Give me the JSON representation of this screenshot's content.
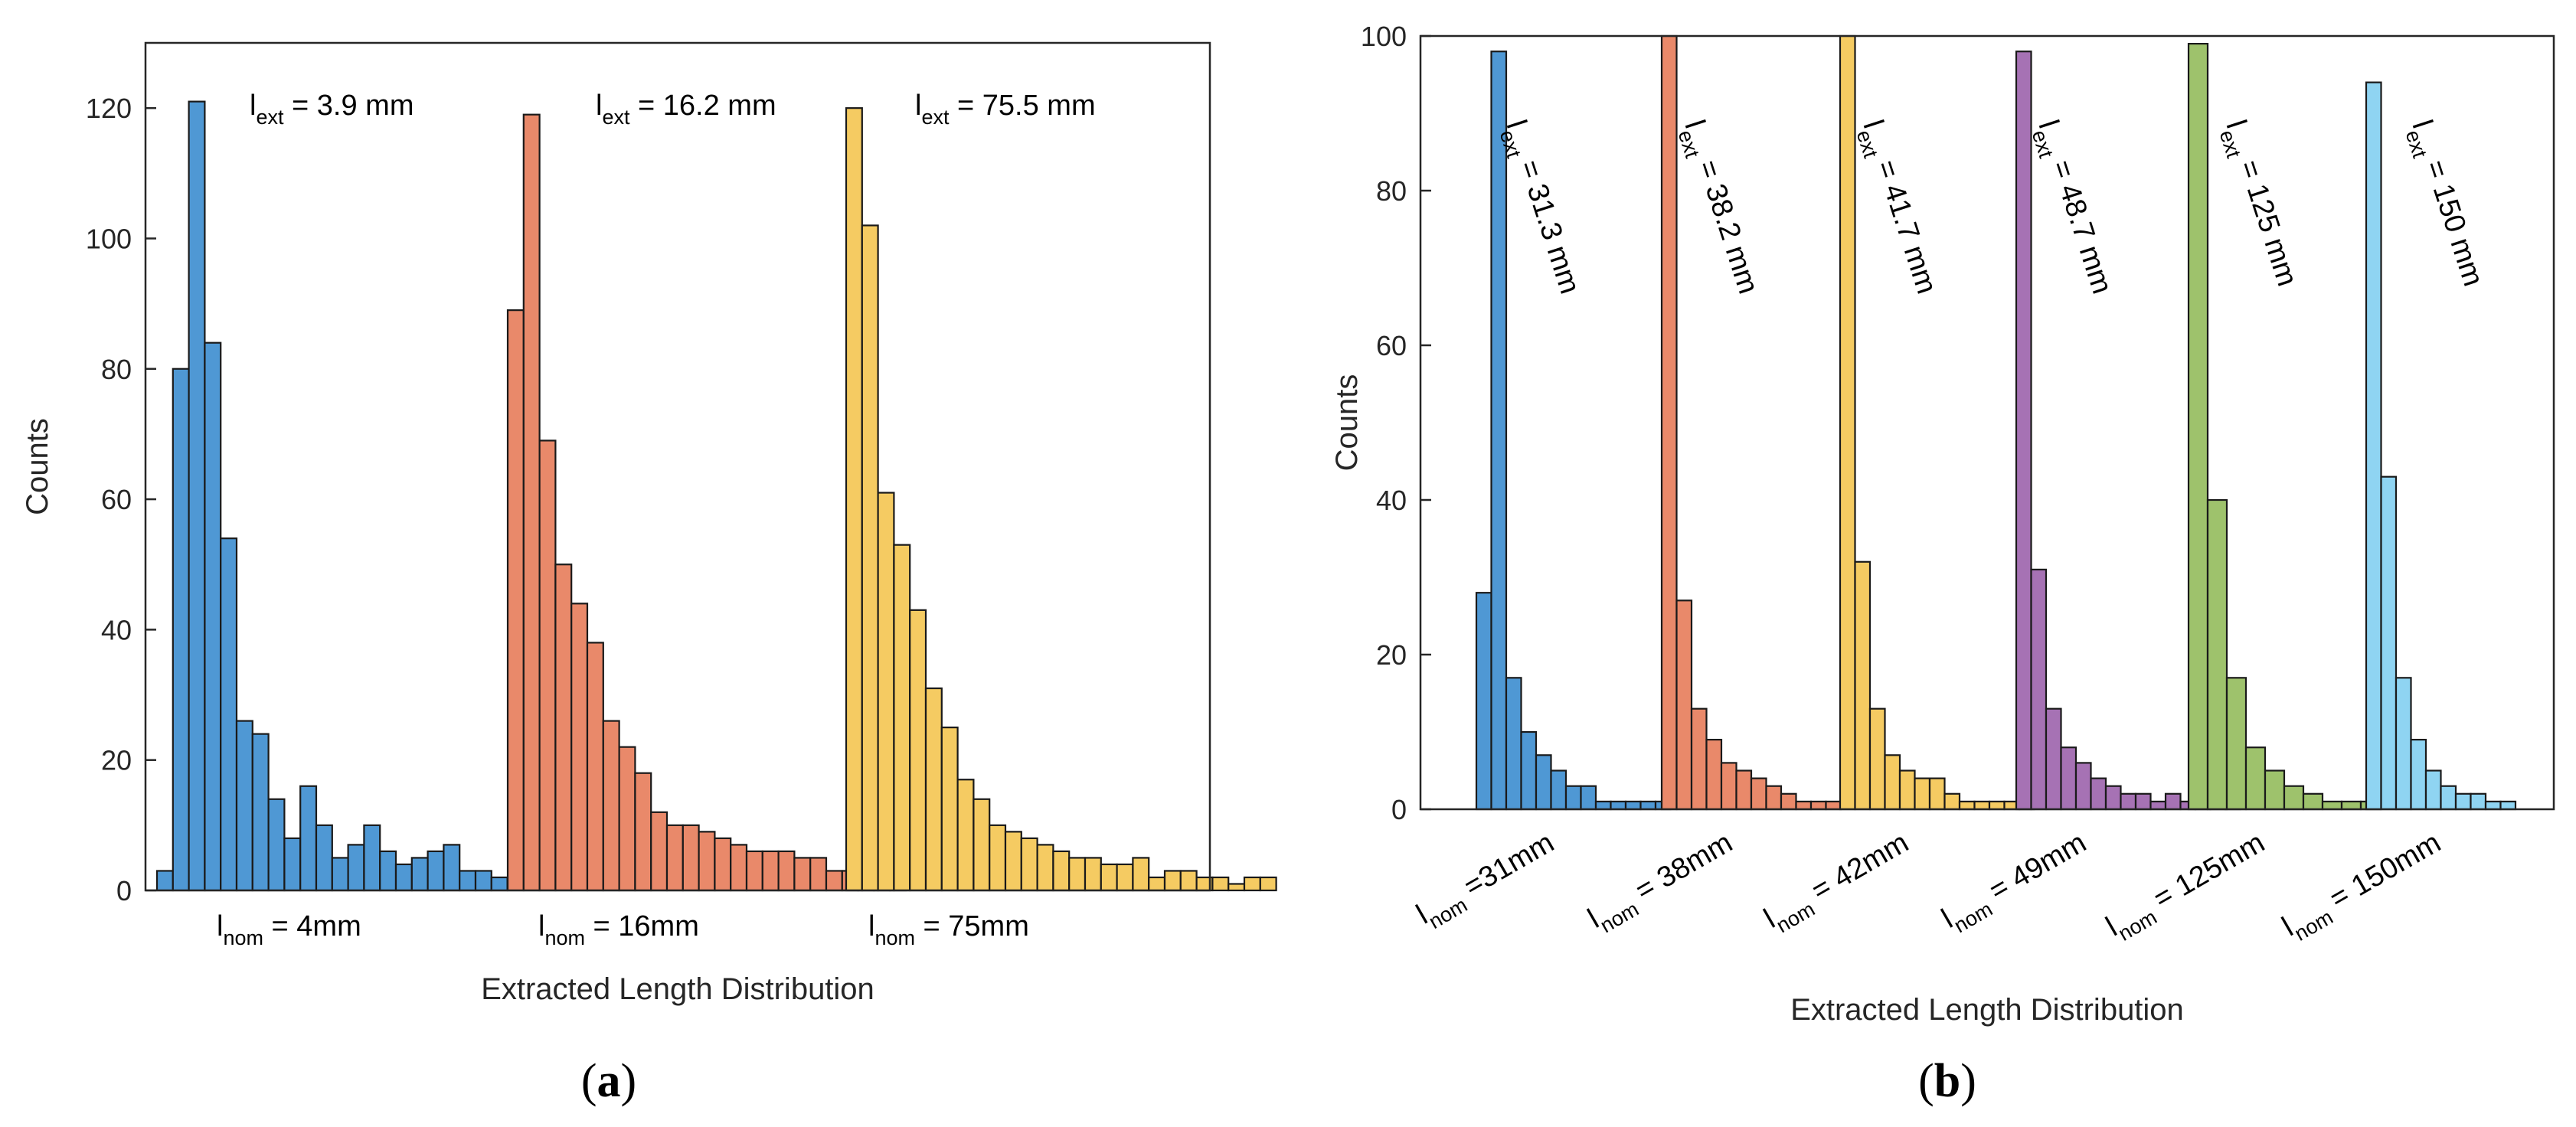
{
  "chart_data": [
    {
      "type": "bar",
      "panel_label": "a",
      "xlabel": "Extracted Length Distribution",
      "ylabel": "Counts",
      "ylim": [
        0,
        130
      ],
      "yticks": [
        "0",
        "20",
        "40",
        "60",
        "80",
        "100",
        "120"
      ],
      "grid": false,
      "x_category_labels": [
        {
          "main": "l",
          "sub": "nom",
          "rest": " = 4mm"
        },
        {
          "main": "l",
          "sub": "nom",
          "rest": " = 16mm"
        },
        {
          "main": "l",
          "sub": "nom",
          "rest": " = 75mm"
        }
      ],
      "series": [
        {
          "label": {
            "main": "l",
            "sub": "ext",
            "rest": " = 3.9 mm"
          },
          "color": "#4f98d4",
          "values": [
            3,
            80,
            121,
            84,
            54,
            26,
            24,
            14,
            8,
            16,
            10,
            5,
            7,
            10,
            6,
            4,
            5,
            6,
            7,
            3,
            3,
            2
          ]
        },
        {
          "label": {
            "main": "l",
            "sub": "ext",
            "rest": " = 16.2 mm"
          },
          "color": "#e9896a",
          "values": [
            89,
            119,
            69,
            50,
            44,
            38,
            26,
            22,
            18,
            12,
            10,
            10,
            9,
            8,
            7,
            6,
            6,
            6,
            5,
            5,
            3,
            3,
            2,
            2,
            2
          ]
        },
        {
          "label": {
            "main": "l",
            "sub": "ext",
            "rest": " = 75.5 mm"
          },
          "color": "#f5cb62",
          "values": [
            120,
            102,
            61,
            53,
            43,
            31,
            25,
            17,
            14,
            10,
            9,
            8,
            7,
            6,
            5,
            5,
            4,
            4,
            5,
            2,
            3,
            3,
            2,
            2,
            1,
            2,
            2
          ]
        }
      ]
    },
    {
      "type": "bar",
      "panel_label": "b",
      "xlabel": "Extracted Length Distribution",
      "ylabel": "Counts",
      "ylim": [
        0,
        100
      ],
      "yticks": [
        "0",
        "20",
        "40",
        "60",
        "80",
        "100"
      ],
      "grid": false,
      "x_category_labels": [
        {
          "main": "l",
          "sub": "nom",
          "rest": " =31mm"
        },
        {
          "main": "l",
          "sub": "nom",
          "rest": " = 38mm"
        },
        {
          "main": "l",
          "sub": "nom",
          "rest": " = 42mm"
        },
        {
          "main": "l",
          "sub": "nom",
          "rest": " = 49mm"
        },
        {
          "main": "l",
          "sub": "nom",
          "rest": " = 125mm"
        },
        {
          "main": "l",
          "sub": "nom",
          "rest": " = 150mm"
        }
      ],
      "series": [
        {
          "label": {
            "main": "l",
            "sub": "ext",
            "rest": " = 31.3 mm"
          },
          "color": "#4f98d4",
          "values": [
            28,
            98,
            17,
            10,
            7,
            5,
            3,
            3,
            1,
            1,
            1,
            1,
            1
          ]
        },
        {
          "label": {
            "main": "l",
            "sub": "ext",
            "rest": " = 38.2 mm"
          },
          "color": "#e9896a",
          "values": [
            100,
            27,
            13,
            9,
            6,
            5,
            4,
            3,
            2,
            1,
            1,
            1
          ]
        },
        {
          "label": {
            "main": "l",
            "sub": "ext",
            "rest": " = 41.7 mm"
          },
          "color": "#f5cb62",
          "values": [
            100,
            32,
            13,
            7,
            5,
            4,
            4,
            2,
            1,
            1,
            1,
            1,
            1
          ]
        },
        {
          "label": {
            "main": "l",
            "sub": "ext",
            "rest": " = 48.7 mm"
          },
          "color": "#a672b4",
          "values": [
            98,
            31,
            13,
            8,
            6,
            4,
            3,
            2,
            2,
            1,
            2,
            1,
            1,
            1,
            1
          ]
        },
        {
          "label": {
            "main": "l",
            "sub": "ext",
            "rest": " = 125 mm"
          },
          "color": "#9ec26c",
          "values": [
            99,
            40,
            17,
            8,
            5,
            3,
            2,
            1,
            1,
            1
          ]
        },
        {
          "label": {
            "main": "l",
            "sub": "ext",
            "rest": " = 150 mm"
          },
          "color": "#8fd4f2",
          "values": [
            94,
            43,
            17,
            9,
            5,
            3,
            2,
            2,
            1,
            1
          ]
        }
      ]
    }
  ]
}
